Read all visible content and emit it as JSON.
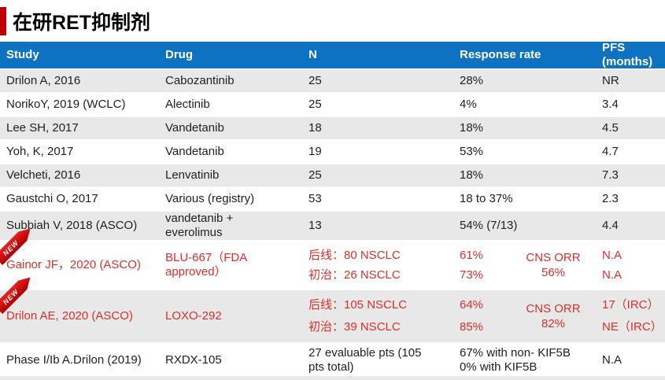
{
  "page_title": "在研RET抑制剂",
  "badge": {
    "label": "NEW"
  },
  "colors": {
    "header_bg": "#0d72c2",
    "header_text": "#ffffff",
    "row_alt_bg": "#e8e8e8",
    "row_bg": "#ffffff",
    "highlight_red": "#d9302c",
    "ribbon_red": "#c00000",
    "title_accent_red": "#c00000"
  },
  "table": {
    "columns": {
      "study": "Study",
      "drug": "Drug",
      "n": "N",
      "response": "Response rate",
      "pfs": "PFS\n(months)"
    },
    "rows": [
      {
        "study": "Drilon A, 2016",
        "drug": "Cabozantinib",
        "n": "25",
        "response": "28%",
        "pfs": "NR"
      },
      {
        "study": "NorikoY, 2019 (WCLC)",
        "drug": "Alectinib",
        "n": "25",
        "response": "4%",
        "pfs": "3.4"
      },
      {
        "study": "Lee SH, 2017",
        "drug": "Vandetanib",
        "n": "18",
        "response": "18%",
        "pfs": "4.5"
      },
      {
        "study": "Yoh, K, 2017",
        "drug": "Vandetanib",
        "n": "19",
        "response": "53%",
        "pfs": "4.7"
      },
      {
        "study": "Velcheti, 2016",
        "drug": "Lenvatinib",
        "n": "25",
        "response": "18%",
        "pfs": "7.3"
      },
      {
        "study": "Gaustchi O, 2017",
        "drug": "Various (registry)",
        "n": "53",
        "response": "18 to 37%",
        "pfs": "2.3"
      },
      {
        "study": "Subbiah V, 2018 (ASCO)",
        "drug": "vandetanib +\neverolimus",
        "n": "13",
        "response": "54% (7/13)",
        "pfs": "4.4"
      },
      {
        "study": "Gainor JF，2020 (ASCO)",
        "drug": "BLU-667（FDA\napproved）",
        "n_line1": "后线：80 NSCLC",
        "n_line2": "初治：26 NSCLC",
        "response_line1": "61%",
        "response_line2": "73%",
        "cns_orr": "CNS ORR 56%",
        "pfs_line1": "N.A",
        "pfs_line2": "N.A",
        "is_new": true
      },
      {
        "study": "Drilon AE, 2020 (ASCO)",
        "drug": "LOXO-292",
        "n_line1": "后线：105 NSCLC",
        "n_line2": "初治：39 NSCLC",
        "response_line1": "64%",
        "response_line2": "85%",
        "cns_orr": "CNS ORR 82%",
        "pfs_line1": "17（IRC）",
        "pfs_line2": "NE（IRC）",
        "is_new": true
      },
      {
        "study": "Phase I/Ib A.Drilon (2019)",
        "drug": "RXDX-105",
        "n": "27 evaluable pts (105\npts total)",
        "response": "67% with non- KIF5B\n0% with KIF5B",
        "pfs": "N.A"
      }
    ]
  }
}
